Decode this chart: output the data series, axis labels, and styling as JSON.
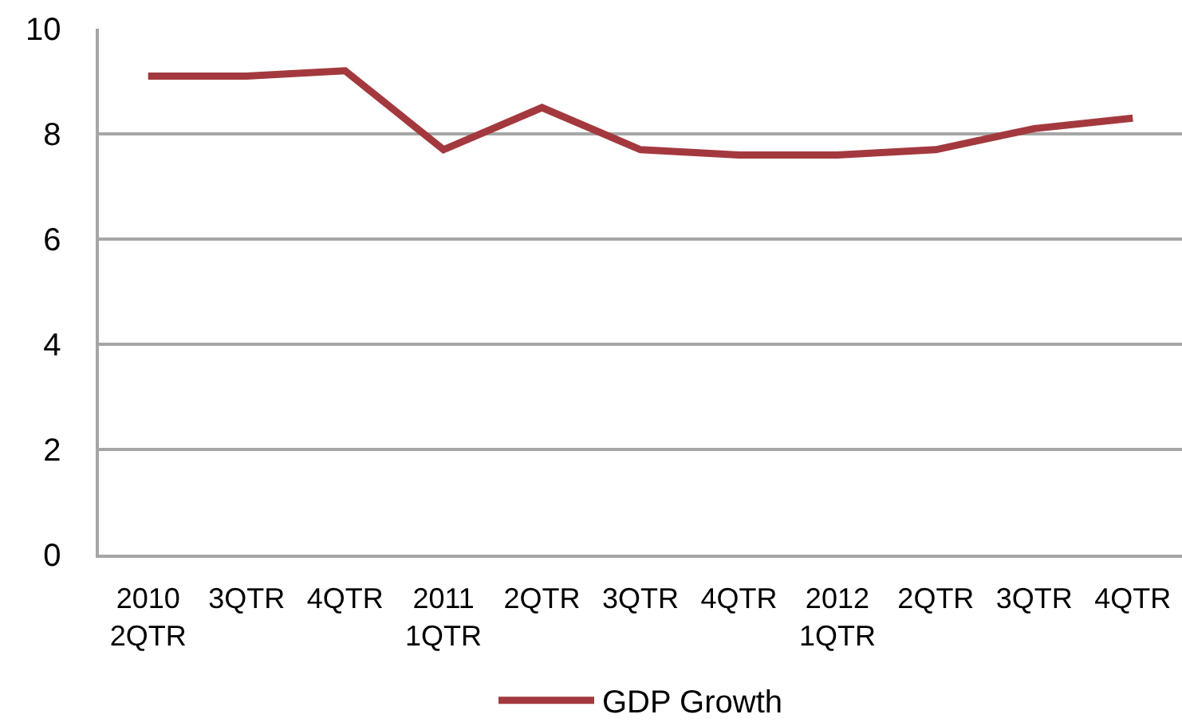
{
  "chart_data": {
    "type": "line",
    "categories": [
      "2010\n2QTR",
      "3QTR",
      "4QTR",
      "2011\n1QTR",
      "2QTR",
      "3QTR",
      "4QTR",
      "2012\n1QTR",
      "2QTR",
      "3QTR",
      "4QTR"
    ],
    "series": [
      {
        "name": "GDP Growth",
        "color": "#a3393e",
        "values": [
          9.1,
          9.1,
          9.2,
          7.7,
          8.5,
          7.7,
          7.6,
          7.6,
          7.7,
          8.1,
          8.3
        ]
      }
    ],
    "ylim": [
      0,
      10
    ],
    "yticks": [
      0,
      2,
      4,
      6,
      8,
      10
    ],
    "grid": "y",
    "legend": "bottom",
    "marker": "none",
    "line_style": "solid"
  }
}
